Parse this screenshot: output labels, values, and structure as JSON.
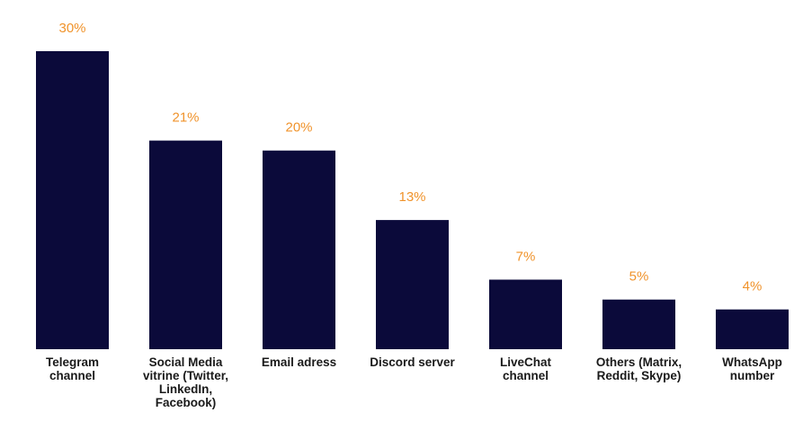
{
  "chart_data": {
    "type": "bar",
    "title": "",
    "xlabel": "",
    "ylabel": "",
    "categories": [
      [
        "Telegram",
        "channel"
      ],
      [
        "Social Media",
        "vitrine (Twitter,",
        "LinkedIn,",
        "Facebook)"
      ],
      [
        "Email adress"
      ],
      [
        "Discord server"
      ],
      [
        "LiveChat",
        "channel"
      ],
      [
        "Others (Matrix,",
        "Reddit, Skype)"
      ],
      [
        "WhatsApp",
        "number"
      ]
    ],
    "values": [
      30,
      21,
      20,
      13,
      7,
      5,
      4
    ],
    "value_labels": [
      "30%",
      "21%",
      "20%",
      "13%",
      "7%",
      "5%",
      "4%"
    ],
    "value_unit": "%",
    "ylim": [
      0,
      30
    ],
    "grid": false,
    "legend": "none",
    "colors": {
      "bar": "#0b0a3a",
      "value_label": "#f0932b",
      "category_label": "#1a1a1a"
    }
  }
}
